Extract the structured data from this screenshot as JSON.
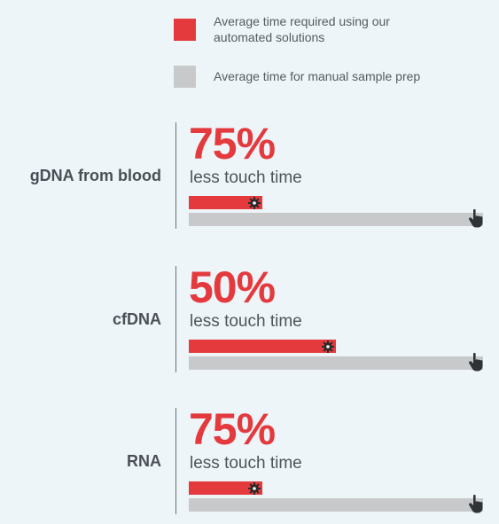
{
  "legend": {
    "automated": {
      "label": "Average time required using our automated solutions",
      "color": "#e43a3e"
    },
    "manual": {
      "label": "Average time for manual sample prep",
      "color": "#c8c9ca"
    }
  },
  "chart_data": {
    "type": "bar",
    "categories": [
      "gDNA from blood",
      "cfDNA",
      "RNA"
    ],
    "series": [
      {
        "name": "Average time required using our automated solutions",
        "values": [
          25,
          50,
          25
        ]
      },
      {
        "name": "Average time for manual sample prep",
        "values": [
          100,
          100,
          100
        ]
      }
    ],
    "reduction_labels": [
      "75%",
      "50%",
      "75%"
    ],
    "reduction_subtext": "less touch time",
    "unit": "%",
    "ylim": [
      0,
      100
    ]
  },
  "icons": {
    "automated_marker": "gear-icon",
    "manual_marker": "hand-icon"
  }
}
